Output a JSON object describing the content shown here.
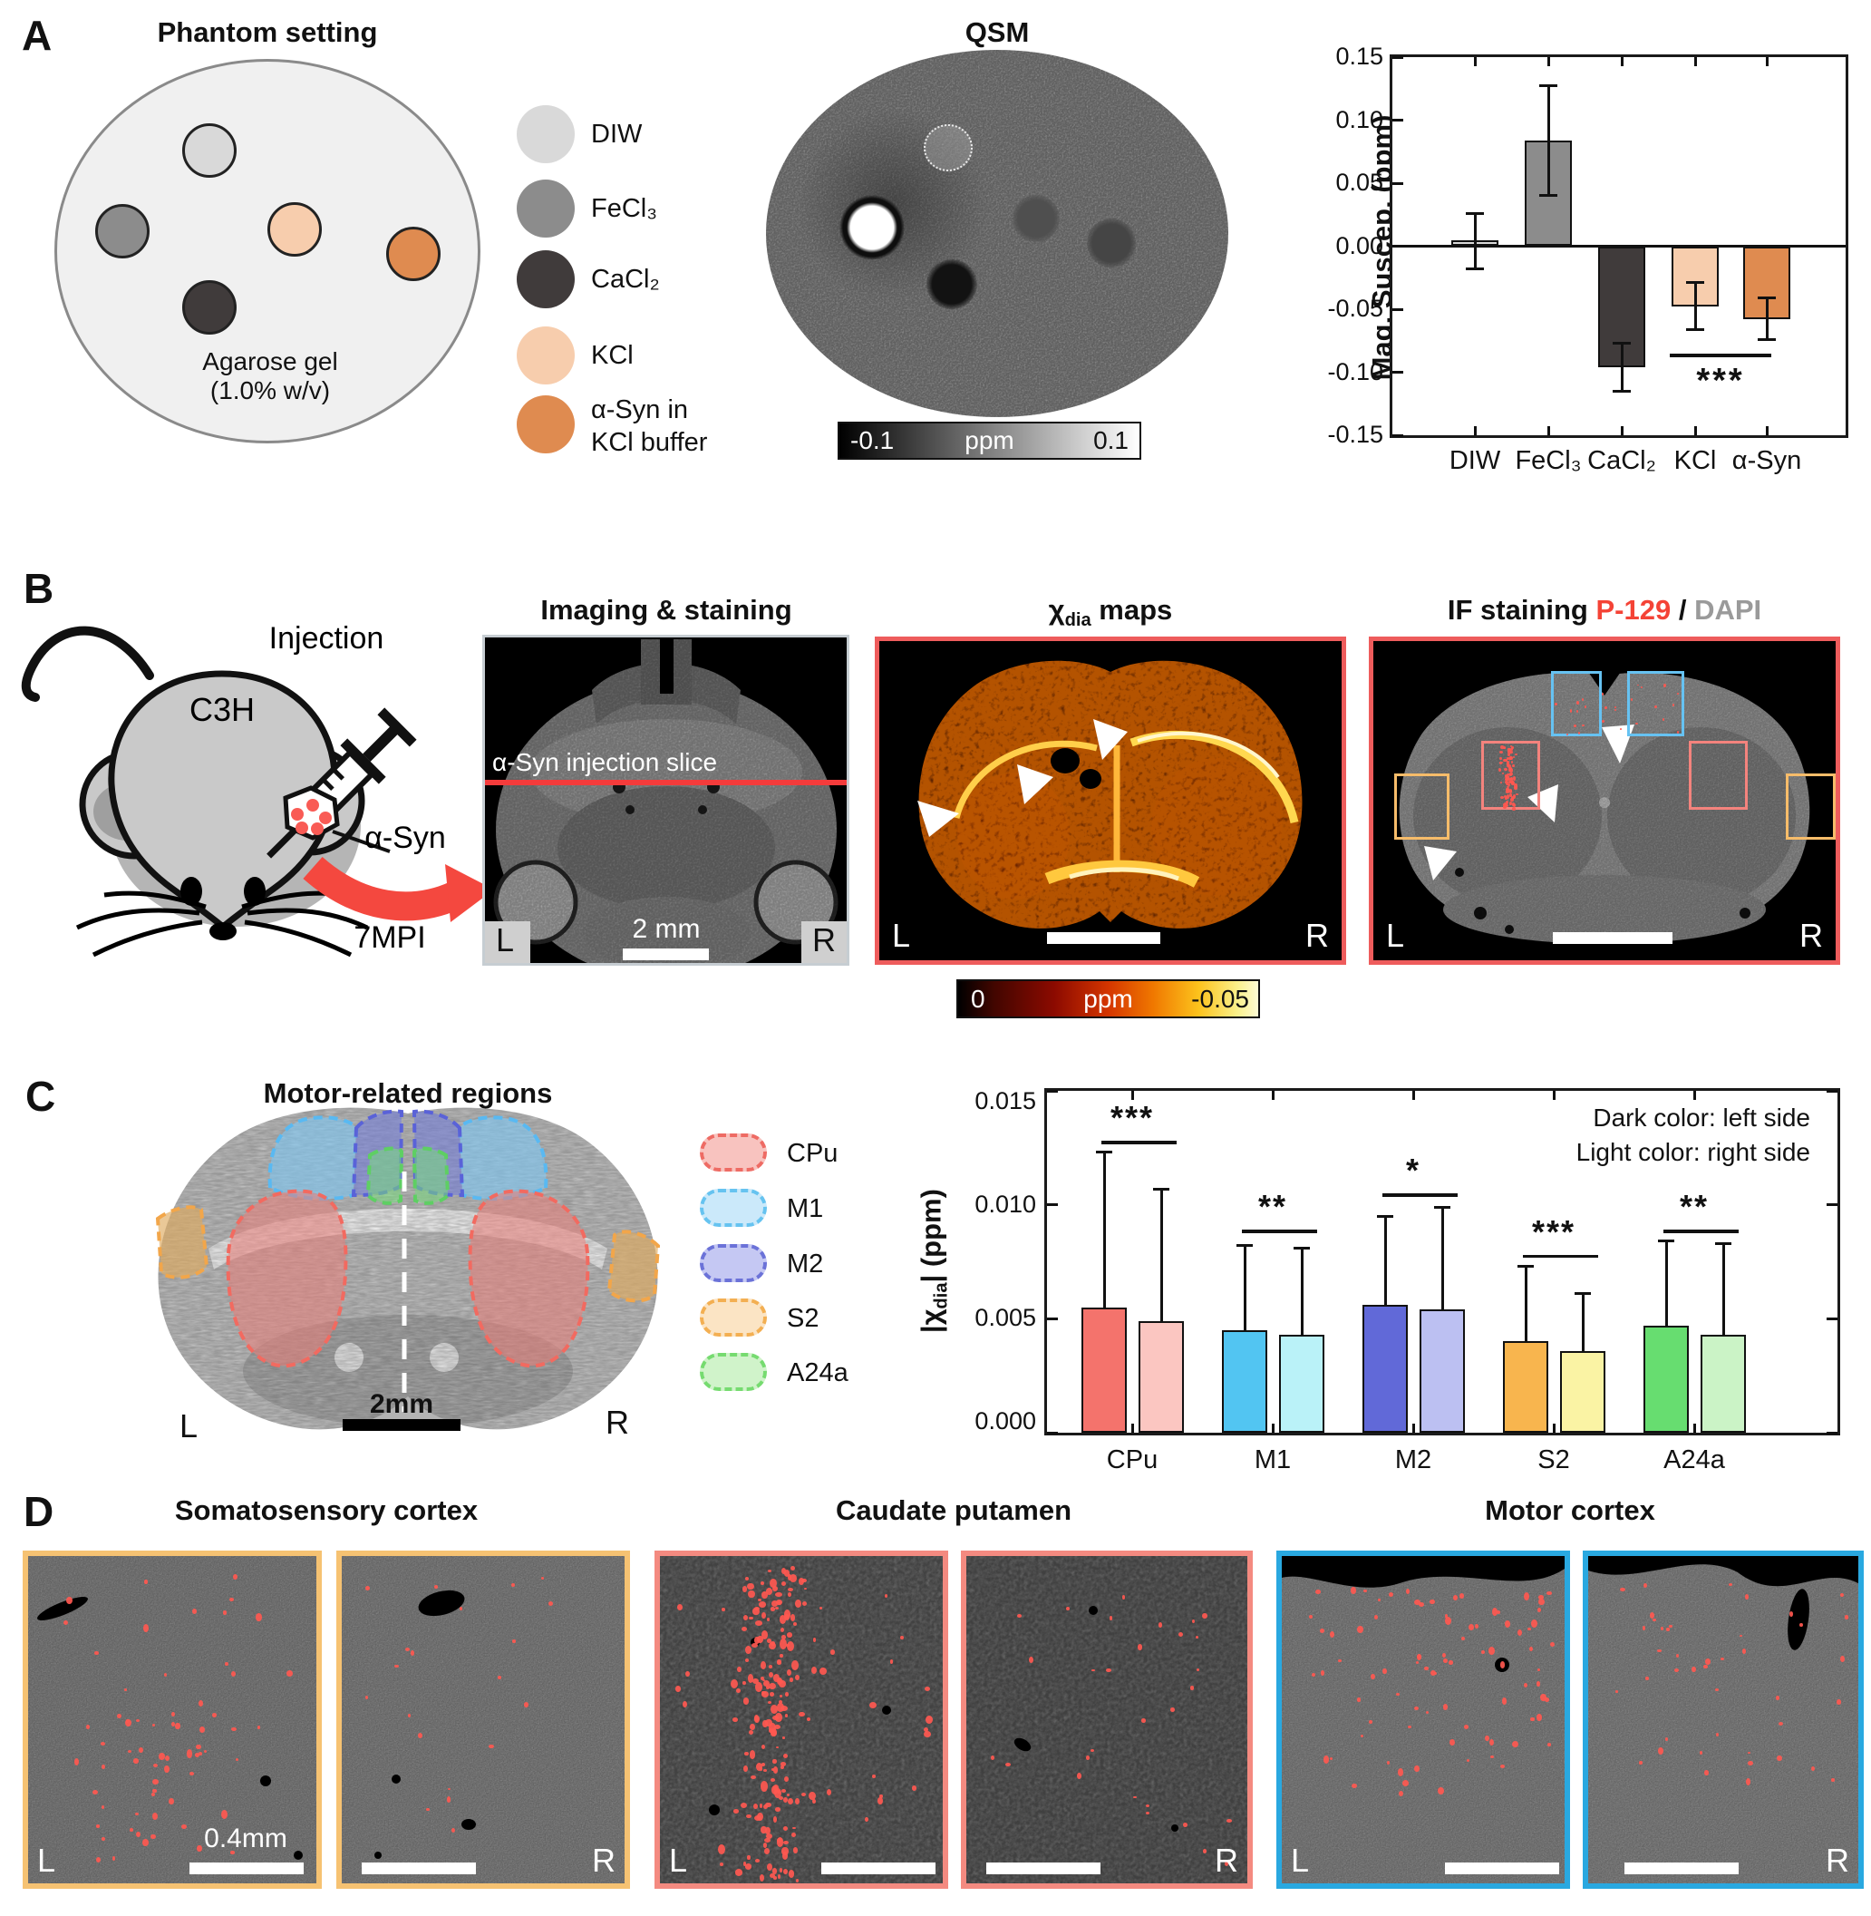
{
  "labels": {
    "L": "L",
    "R": "R"
  },
  "panelA": {
    "letter": "A",
    "phantom_title": "Phantom setting",
    "gel_line1": "Agarose gel",
    "gel_line2": "(1.0% w/v)",
    "legend": [
      {
        "label": "DIW"
      },
      {
        "label": "FeCl₃"
      },
      {
        "label": "CaCl₂"
      },
      {
        "label": "KCl"
      },
      {
        "label": "α-Syn in",
        "label2": "KCl buffer"
      }
    ],
    "qsm_title": "QSM",
    "qsm_colorbar": {
      "min": "-0.1",
      "unit": "ppm",
      "max": "0.1"
    }
  },
  "panelB": {
    "letter": "B",
    "injection": "Injection",
    "strain": "C3H",
    "asyn": "α-Syn",
    "mpi": "7MPI",
    "img_title": "Imaging & staining",
    "slice_label": "α-Syn injection slice",
    "scale_label": "2 mm",
    "xdia": {
      "chi": "χ",
      "sub": "dia",
      "rest": " maps"
    },
    "chi_colorbar": {
      "min": "0",
      "unit": "ppm",
      "max": "-0.05"
    },
    "if_title": {
      "part1": "IF staining ",
      "p129": "P-129",
      "slash": " / ",
      "dapi": "DAPI"
    }
  },
  "panelC": {
    "letter": "C",
    "title": "Motor-related regions",
    "scale_label": "2mm",
    "legend": [
      {
        "label": "CPu"
      },
      {
        "label": "M1"
      },
      {
        "label": "M2"
      },
      {
        "label": "S2"
      },
      {
        "label": "A24a"
      }
    ],
    "ylabel_parts": {
      "pre": "|χ",
      "sub": "dia",
      "post": "| (ppm)"
    }
  },
  "panelD": {
    "letter": "D",
    "group1": "Somatosensory cortex",
    "group2": "Caudate putamen",
    "group3": "Motor cortex",
    "scale_label": "0.4mm"
  },
  "colors": {
    "accent_red": "#ee5c5c",
    "blue_border": "#29a8e0",
    "orange_border": "#f6c272",
    "salmon_border": "#f48a80",
    "if_box_blue": "#66c2f2",
    "if_box_salmon": "#f4837d",
    "if_box_orange": "#f6bc6a",
    "p129_red": "#f44336",
    "dapi_gray": "#9a9a9a",
    "stain_dot": "#ff5850"
  },
  "chart_data": [
    {
      "type": "bar",
      "title": "",
      "xlabel": "",
      "ylabel": "Mag. Suscep. (ppm)",
      "categories": [
        "DIW",
        "FeCl₃",
        "CaCl₂",
        "KCl",
        "α-Syn"
      ],
      "values": [
        0.005,
        0.084,
        -0.096,
        -0.048,
        -0.058
      ],
      "err_lo": [
        -0.018,
        0.04,
        -0.115,
        -0.066,
        -0.074
      ],
      "err_hi": [
        0.026,
        0.127,
        -0.077,
        -0.029,
        -0.041
      ],
      "bar_colors": [
        "#d9d9d9",
        "#8c8c8c",
        "#403b3b",
        "#f7cdad",
        "#df8b50"
      ],
      "ylim": [
        -0.15,
        0.15
      ],
      "yticks": [
        "0.15",
        "0.10",
        "0.05",
        "0.00",
        "-0.05",
        "-0.10",
        "-0.15"
      ],
      "grid": false,
      "significance": [
        {
          "between": [
            "KCl",
            "α-Syn"
          ],
          "stars": "***"
        }
      ]
    },
    {
      "type": "bar",
      "title": "",
      "xlabel": "",
      "ylabel": "|χdia| (ppm)",
      "categories": [
        "CPu",
        "M1",
        "M2",
        "S2",
        "A24a"
      ],
      "series": [
        {
          "name": "left side (dark color)",
          "values": [
            0.0055,
            0.0045,
            0.0056,
            0.004,
            0.0047
          ],
          "err_hi": [
            0.0123,
            0.0082,
            0.0095,
            0.0073,
            0.0084
          ],
          "colors": [
            "#f4736c",
            "#52c5f2",
            "#6169d8",
            "#f8b54e",
            "#67dd70"
          ]
        },
        {
          "name": "right side (light color)",
          "values": [
            0.0049,
            0.0043,
            0.0054,
            0.0036,
            0.0043
          ],
          "err_hi": [
            0.0107,
            0.0081,
            0.0099,
            0.0061,
            0.0083
          ],
          "colors": [
            "#fbc6c1",
            "#baf2f8",
            "#bcc0f2",
            "#faf3a4",
            "#cbf3c6"
          ]
        }
      ],
      "ylim": [
        0,
        0.015
      ],
      "yticks": [
        "0.015",
        "0.010",
        "0.005",
        "0.000"
      ],
      "grid": false,
      "significance": [
        "***",
        "**",
        "*",
        "***",
        "**"
      ],
      "note": [
        "Dark color: left side",
        "Light color: right side"
      ]
    }
  ]
}
